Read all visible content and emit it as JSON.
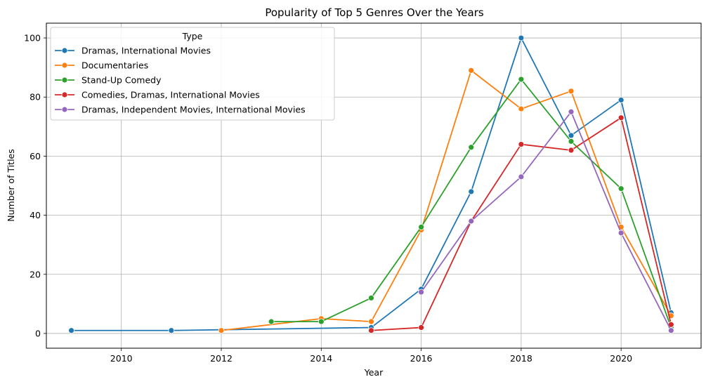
{
  "chart_data": {
    "type": "line",
    "title": "Popularity of Top 5 Genres Over the Years",
    "xlabel": "Year",
    "ylabel": "Number of Titles",
    "xlim": [
      2008.5,
      2021.6
    ],
    "ylim": [
      -5,
      105
    ],
    "xticks": [
      2010,
      2012,
      2014,
      2016,
      2018,
      2020
    ],
    "yticks": [
      0,
      20,
      40,
      60,
      80,
      100
    ],
    "grid": true,
    "legend_title": "Type",
    "legend_position": "top-left",
    "series": [
      {
        "name": "Dramas, International Movies",
        "color": "#1f77b4",
        "points": [
          [
            2009,
            1
          ],
          [
            2011,
            1
          ],
          [
            2015,
            2
          ],
          [
            2016,
            15
          ],
          [
            2017,
            48
          ],
          [
            2018,
            100
          ],
          [
            2019,
            67
          ],
          [
            2020,
            79
          ],
          [
            2021,
            7
          ]
        ]
      },
      {
        "name": "Documentaries",
        "color": "#ff7f0e",
        "points": [
          [
            2012,
            1
          ],
          [
            2014,
            5
          ],
          [
            2015,
            4
          ],
          [
            2016,
            35
          ],
          [
            2017,
            89
          ],
          [
            2018,
            76
          ],
          [
            2019,
            82
          ],
          [
            2020,
            36
          ],
          [
            2021,
            6
          ]
        ]
      },
      {
        "name": "Stand-Up Comedy",
        "color": "#2ca02c",
        "points": [
          [
            2013,
            4
          ],
          [
            2014,
            4
          ],
          [
            2015,
            12
          ],
          [
            2016,
            36
          ],
          [
            2017,
            63
          ],
          [
            2018,
            86
          ],
          [
            2019,
            65
          ],
          [
            2020,
            49
          ],
          [
            2021,
            2
          ]
        ]
      },
      {
        "name": "Comedies, Dramas, International Movies",
        "color": "#d62728",
        "points": [
          [
            2015,
            1
          ],
          [
            2016,
            2
          ],
          [
            2017,
            38
          ],
          [
            2018,
            64
          ],
          [
            2019,
            62
          ],
          [
            2020,
            73
          ],
          [
            2021,
            3
          ]
        ]
      },
      {
        "name": "Dramas, Independent Movies, International Movies",
        "color": "#9467bd",
        "points": [
          [
            2016,
            14
          ],
          [
            2017,
            38
          ],
          [
            2018,
            53
          ],
          [
            2019,
            75
          ],
          [
            2020,
            34
          ],
          [
            2021,
            1
          ]
        ]
      }
    ]
  }
}
